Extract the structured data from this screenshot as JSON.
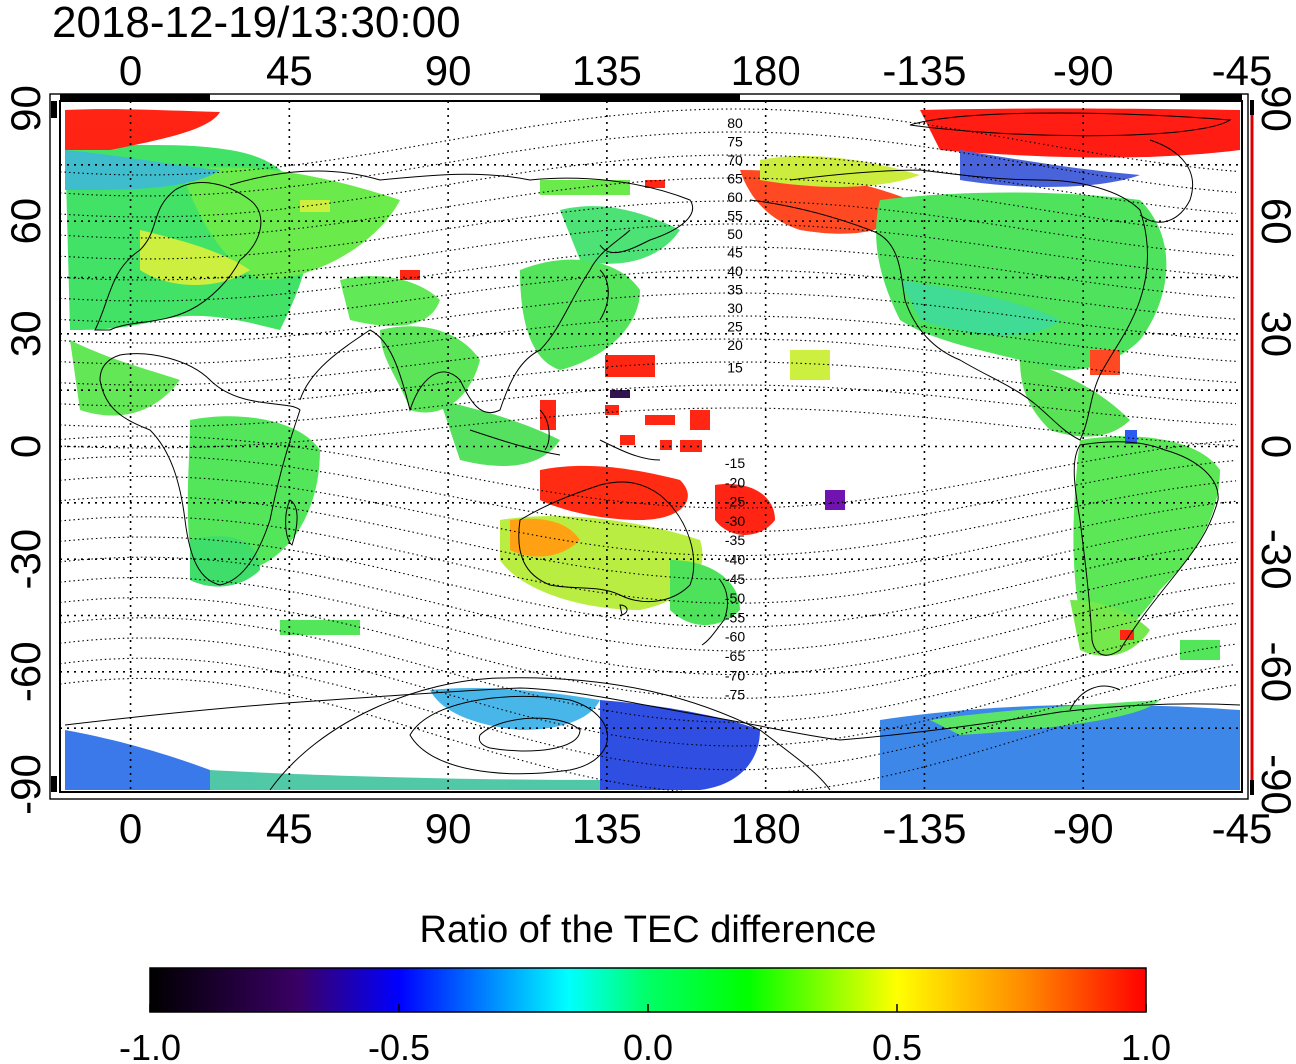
{
  "map": {
    "timestamp": "2018-12-19/13:30:00",
    "top_lon_labels": [
      "0",
      "45",
      "90",
      "135",
      "180",
      "-135",
      "-90",
      "-45"
    ],
    "bottom_lon_labels": [
      "0",
      "45",
      "90",
      "135",
      "180",
      "-135",
      "-90",
      "-45"
    ],
    "left_lat_labels": [
      "90",
      "60",
      "30",
      "0",
      "-30",
      "-60",
      "-90"
    ],
    "right_lat_labels": [
      "90",
      "60",
      "30",
      "0",
      "-30",
      "-60",
      "-90"
    ],
    "maglat_north_labels": [
      "80",
      "75",
      "70",
      "65",
      "60",
      "55",
      "50",
      "45",
      "40",
      "35",
      "30",
      "25",
      "20",
      "15"
    ],
    "maglat_south_labels": [
      "-15",
      "-20",
      "-25",
      "-30",
      "-35",
      "-40",
      "-45",
      "-50",
      "-55",
      "-60",
      "-65",
      "-70",
      "-75"
    ],
    "lon_range": [
      -20,
      315
    ],
    "lat_range": [
      -92,
      92
    ],
    "grid": true,
    "colors": {
      "positive_high": "#ff0000",
      "near_zero": "#00ff00",
      "negative": "#0000ff",
      "coastline": "#000000"
    }
  },
  "colorbar": {
    "title": "Ratio of the TEC difference",
    "tick_labels": [
      "-1.0",
      "-0.5",
      "0.0",
      "0.5",
      "1.0"
    ],
    "range": [
      -1.0,
      1.0
    ],
    "colors": [
      "#000000",
      "#3a0066",
      "#0000ff",
      "#00ffff",
      "#00ff00",
      "#ffff00",
      "#ff0000"
    ]
  }
}
